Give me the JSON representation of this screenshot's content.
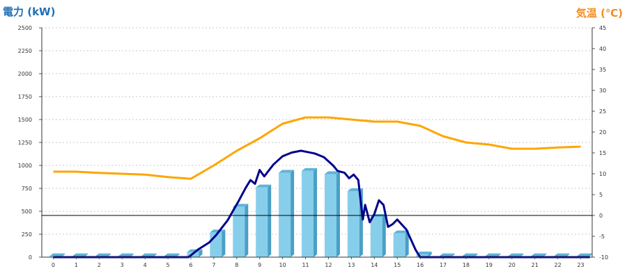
{
  "chart_data": {
    "type": "bar",
    "title": "",
    "left_axis": {
      "label": "電力 (kW)",
      "min": 0,
      "max": 2500,
      "ticks": [
        0,
        250,
        500,
        750,
        1000,
        1250,
        1500,
        1750,
        2000,
        2250,
        2500
      ]
    },
    "right_axis": {
      "label": "気温 (℃)",
      "min": -10,
      "max": 45,
      "ticks": [
        -10,
        -5,
        0,
        5,
        10,
        15,
        20,
        25,
        30,
        35,
        40,
        45
      ]
    },
    "x_ticks": [
      "0",
      "1",
      "2",
      "3",
      "4",
      "5",
      "6",
      "7",
      "8",
      "9",
      "10",
      "11",
      "12",
      "13",
      "14",
      "15",
      "16",
      "17",
      "18",
      "19",
      "20",
      "21",
      "22",
      "23"
    ],
    "grid": true,
    "colors": {
      "bar": "#87ceeb",
      "bar_dark": "#4a9fc5",
      "power_line": "#00008b",
      "temp_line": "#ffa500"
    },
    "series": [
      {
        "kind": "bar",
        "axis": "left",
        "x": [
          0,
          1,
          2,
          3,
          4,
          5,
          6,
          7,
          8,
          9,
          10,
          11,
          12,
          13,
          14,
          15,
          16,
          17,
          18,
          19,
          20,
          21,
          22,
          23
        ],
        "values": [
          10,
          10,
          10,
          10,
          10,
          10,
          55,
          270,
          550,
          760,
          920,
          940,
          905,
          720,
          440,
          260,
          30,
          10,
          10,
          10,
          10,
          10,
          10,
          10
        ]
      },
      {
        "kind": "line",
        "axis": "left",
        "x": [
          0,
          5.9,
          6.3,
          6.8,
          7.1,
          7.6,
          8.1,
          8.4,
          8.6,
          8.8,
          9.0,
          9.2,
          9.6,
          10.0,
          10.4,
          10.8,
          11.0,
          11.4,
          11.8,
          12.2,
          12.4,
          12.7,
          12.9,
          13.1,
          13.3,
          13.5,
          13.6,
          13.8,
          14.0,
          14.2,
          14.4,
          14.6,
          14.8,
          15.0,
          15.4,
          15.8,
          16.0,
          23.4
        ],
        "values": [
          0,
          0,
          80,
          160,
          240,
          400,
          620,
          760,
          840,
          800,
          950,
          880,
          1010,
          1100,
          1140,
          1160,
          1150,
          1130,
          1090,
          1000,
          940,
          920,
          860,
          900,
          840,
          410,
          570,
          380,
          470,
          620,
          570,
          330,
          360,
          410,
          300,
          80,
          0,
          0
        ]
      },
      {
        "kind": "line",
        "axis": "right",
        "x": [
          0,
          1,
          2,
          3,
          4,
          5,
          6,
          7,
          8,
          9,
          10,
          11,
          12,
          13,
          14,
          15,
          16,
          17,
          18,
          19,
          20,
          21,
          22,
          23
        ],
        "values": [
          10.5,
          10.5,
          10.2,
          10,
          9.8,
          9.2,
          8.8,
          12,
          15.5,
          18.5,
          22,
          23.5,
          23.5,
          23,
          22.5,
          22.5,
          21.5,
          19,
          17.5,
          17,
          16,
          16,
          16.3,
          16.5
        ]
      }
    ]
  }
}
